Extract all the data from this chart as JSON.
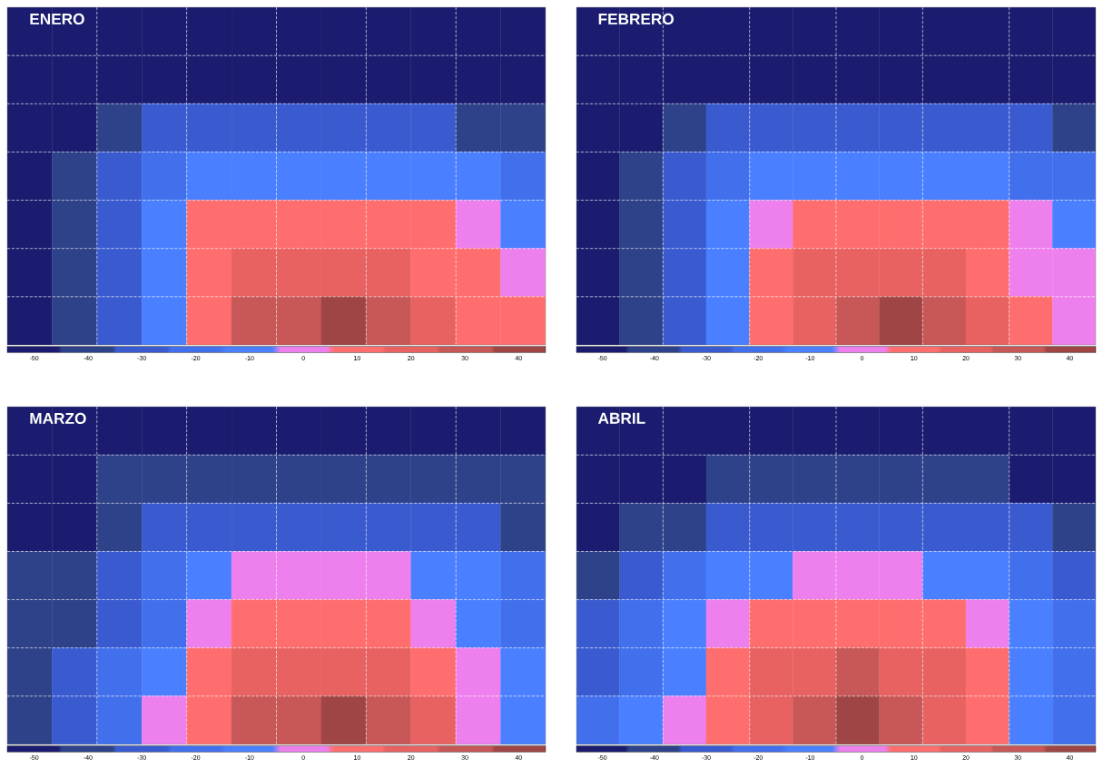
{
  "chart_data": [
    {
      "type": "heatmap",
      "title": "ENERO",
      "grid": true,
      "tick_labels": false,
      "categories": [
        null,
        null,
        null,
        null,
        null,
        null,
        null,
        null,
        null,
        null,
        null,
        null
      ],
      "y_categories": [
        null,
        null,
        null,
        null,
        null,
        null,
        null
      ],
      "cells": [
        [
          -50,
          -50,
          -50,
          -50,
          -50,
          -50,
          -50,
          -50,
          -50,
          -50,
          -50,
          -50
        ],
        [
          -50,
          -50,
          -50,
          -50,
          -50,
          -50,
          -50,
          -50,
          -50,
          -50,
          -50,
          -50
        ],
        [
          -50,
          -50,
          -40,
          -30,
          -30,
          -30,
          -30,
          -30,
          -30,
          -30,
          -40,
          -40
        ],
        [
          -50,
          -40,
          -30,
          -20,
          -10,
          -10,
          -10,
          -10,
          -10,
          -10,
          -10,
          -20
        ],
        [
          -50,
          -40,
          -30,
          -10,
          10,
          10,
          10,
          10,
          10,
          10,
          0,
          -10
        ],
        [
          -50,
          -40,
          -30,
          -10,
          10,
          20,
          20,
          20,
          20,
          10,
          10,
          0
        ],
        [
          -50,
          -40,
          -30,
          -10,
          10,
          30,
          30,
          40,
          30,
          20,
          10,
          10
        ]
      ],
      "clim": [
        -55,
        45
      ],
      "cticks": [
        -50,
        -40,
        -30,
        -20,
        -10,
        0,
        10,
        20,
        30,
        40
      ],
      "colors": [
        "#1b1b6f",
        "#2d4288",
        "#3a5bd0",
        "#4270ec",
        "#4a80ff",
        "#ee80ee",
        "#ff6e6e",
        "#e86262",
        "#c85757",
        "#a04545"
      ]
    },
    {
      "type": "heatmap",
      "title": "FEBRERO",
      "grid": true,
      "tick_labels": false,
      "categories": [
        null,
        null,
        null,
        null,
        null,
        null,
        null,
        null,
        null,
        null,
        null,
        null
      ],
      "y_categories": [
        null,
        null,
        null,
        null,
        null,
        null,
        null
      ],
      "cells": [
        [
          -50,
          -50,
          -50,
          -50,
          -50,
          -50,
          -50,
          -50,
          -50,
          -50,
          -50,
          -50
        ],
        [
          -50,
          -50,
          -50,
          -50,
          -50,
          -50,
          -50,
          -50,
          -50,
          -50,
          -50,
          -50
        ],
        [
          -50,
          -50,
          -40,
          -30,
          -30,
          -30,
          -30,
          -30,
          -30,
          -30,
          -30,
          -40
        ],
        [
          -50,
          -40,
          -30,
          -20,
          -10,
          -10,
          -10,
          -10,
          -10,
          -10,
          -20,
          -20
        ],
        [
          -50,
          -40,
          -30,
          -10,
          0,
          10,
          10,
          10,
          10,
          10,
          0,
          -10
        ],
        [
          -50,
          -40,
          -30,
          -10,
          10,
          20,
          20,
          20,
          20,
          10,
          0,
          0
        ],
        [
          -50,
          -40,
          -30,
          -10,
          10,
          20,
          30,
          40,
          30,
          20,
          10,
          0
        ]
      ],
      "clim": [
        -55,
        45
      ],
      "cticks": [
        -50,
        -40,
        -30,
        -20,
        -10,
        0,
        10,
        20,
        30,
        40
      ],
      "colors": [
        "#1b1b6f",
        "#2d4288",
        "#3a5bd0",
        "#4270ec",
        "#4a80ff",
        "#ee80ee",
        "#ff6e6e",
        "#e86262",
        "#c85757",
        "#a04545"
      ]
    },
    {
      "type": "heatmap",
      "title": "MARZO",
      "grid": true,
      "tick_labels": false,
      "categories": [
        null,
        null,
        null,
        null,
        null,
        null,
        null,
        null,
        null,
        null,
        null,
        null
      ],
      "y_categories": [
        null,
        null,
        null,
        null,
        null,
        null,
        null
      ],
      "cells": [
        [
          -50,
          -50,
          -50,
          -50,
          -50,
          -50,
          -50,
          -50,
          -50,
          -50,
          -50,
          -50
        ],
        [
          -50,
          -50,
          -40,
          -40,
          -40,
          -40,
          -40,
          -40,
          -40,
          -40,
          -40,
          -40
        ],
        [
          -50,
          -50,
          -40,
          -30,
          -30,
          -30,
          -30,
          -30,
          -30,
          -30,
          -30,
          -40
        ],
        [
          -40,
          -40,
          -30,
          -20,
          -10,
          0,
          0,
          0,
          0,
          -10,
          -10,
          -20
        ],
        [
          -40,
          -40,
          -30,
          -20,
          0,
          10,
          10,
          10,
          10,
          0,
          -10,
          -20
        ],
        [
          -40,
          -30,
          -20,
          -10,
          10,
          20,
          20,
          20,
          20,
          10,
          0,
          -10
        ],
        [
          -40,
          -30,
          -20,
          0,
          10,
          30,
          30,
          40,
          30,
          20,
          0,
          -10
        ]
      ],
      "clim": [
        -55,
        45
      ],
      "cticks": [
        -50,
        -40,
        -30,
        -20,
        -10,
        0,
        10,
        20,
        30,
        40
      ],
      "colors": [
        "#1b1b6f",
        "#2d4288",
        "#3a5bd0",
        "#4270ec",
        "#4a80ff",
        "#ee80ee",
        "#ff6e6e",
        "#e86262",
        "#c85757",
        "#a04545"
      ]
    },
    {
      "type": "heatmap",
      "title": "ABRIL",
      "grid": true,
      "tick_labels": false,
      "categories": [
        null,
        null,
        null,
        null,
        null,
        null,
        null,
        null,
        null,
        null,
        null,
        null
      ],
      "y_categories": [
        null,
        null,
        null,
        null,
        null,
        null,
        null
      ],
      "cells": [
        [
          -50,
          -50,
          -50,
          -50,
          -50,
          -50,
          -50,
          -50,
          -50,
          -50,
          -50,
          -50
        ],
        [
          -50,
          -50,
          -50,
          -40,
          -40,
          -40,
          -40,
          -40,
          -40,
          -40,
          -50,
          -50
        ],
        [
          -50,
          -40,
          -40,
          -30,
          -30,
          -30,
          -30,
          -30,
          -30,
          -30,
          -30,
          -40
        ],
        [
          -40,
          -30,
          -20,
          -10,
          -10,
          0,
          0,
          0,
          -10,
          -10,
          -20,
          -30
        ],
        [
          -30,
          -20,
          -10,
          0,
          10,
          10,
          10,
          10,
          10,
          0,
          -10,
          -20
        ],
        [
          -30,
          -20,
          -10,
          10,
          20,
          20,
          30,
          20,
          20,
          10,
          -10,
          -20
        ],
        [
          -20,
          -10,
          0,
          10,
          20,
          30,
          40,
          30,
          20,
          10,
          -10,
          -20
        ]
      ],
      "clim": [
        -55,
        45
      ],
      "cticks": [
        -50,
        -40,
        -30,
        -20,
        -10,
        0,
        10,
        20,
        30,
        40
      ],
      "colors": [
        "#1b1b6f",
        "#2d4288",
        "#3a5bd0",
        "#4270ec",
        "#4a80ff",
        "#ee80ee",
        "#ff6e6e",
        "#e86262",
        "#c85757",
        "#a04545"
      ]
    }
  ]
}
